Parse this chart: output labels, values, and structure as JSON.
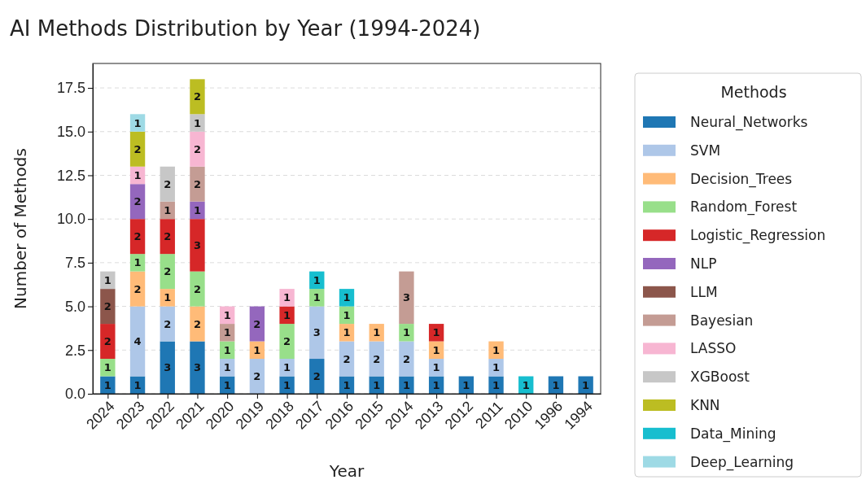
{
  "chart_data": {
    "type": "bar",
    "title": "AI Methods Distribution by Year (1994-2024)",
    "xlabel": "Year",
    "ylabel": "Number of Methods",
    "legend_title": "Methods",
    "categories": [
      "2024",
      "2023",
      "2022",
      "2021",
      "2020",
      "2019",
      "2018",
      "2017",
      "2016",
      "2015",
      "2014",
      "2013",
      "2012",
      "2011",
      "2010",
      "1996",
      "1994"
    ],
    "stacked": true,
    "data_labels": true,
    "grid": "y",
    "legend": "right",
    "ylim": [
      0,
      18.9
    ],
    "yticks": [
      {
        "value": 0,
        "label": "0.0"
      },
      {
        "value": 2.5,
        "label": "2.5"
      },
      {
        "value": 5,
        "label": "5.0"
      },
      {
        "value": 7.5,
        "label": "7.5"
      },
      {
        "value": 10,
        "label": "10.0"
      },
      {
        "value": 12.5,
        "label": "12.5"
      },
      {
        "value": 15,
        "label": "15.0"
      },
      {
        "value": 17.5,
        "label": "17.5"
      }
    ],
    "series": [
      {
        "name": "Neural_Networks",
        "color": "#1f77b4",
        "values": [
          1,
          1,
          3,
          3,
          1,
          null,
          1,
          2,
          1,
          1,
          1,
          1,
          1,
          1,
          null,
          1,
          1
        ]
      },
      {
        "name": "SVM",
        "color": "#aec7e8",
        "values": [
          null,
          4,
          2,
          null,
          1,
          2,
          1,
          3,
          2,
          2,
          2,
          1,
          null,
          1,
          null,
          null,
          null
        ]
      },
      {
        "name": "Decision_Trees",
        "color": "#ffbb78",
        "values": [
          null,
          2,
          1,
          2,
          null,
          1,
          null,
          null,
          1,
          1,
          null,
          1,
          null,
          1,
          null,
          null,
          null
        ]
      },
      {
        "name": "Random_Forest",
        "color": "#98df8a",
        "values": [
          1,
          1,
          2,
          2,
          1,
          null,
          2,
          1,
          1,
          null,
          1,
          null,
          null,
          null,
          null,
          null,
          null
        ]
      },
      {
        "name": "Logistic_Regression",
        "color": "#d62728",
        "values": [
          2,
          2,
          2,
          3,
          null,
          null,
          1,
          null,
          null,
          null,
          null,
          1,
          null,
          null,
          null,
          null,
          null
        ]
      },
      {
        "name": "NLP",
        "color": "#9467bd",
        "values": [
          null,
          2,
          null,
          1,
          null,
          2,
          null,
          null,
          null,
          null,
          null,
          null,
          null,
          null,
          null,
          null,
          null
        ]
      },
      {
        "name": "LLM",
        "color": "#8c564b",
        "values": [
          2,
          null,
          null,
          null,
          null,
          null,
          null,
          null,
          null,
          null,
          null,
          null,
          null,
          null,
          null,
          null,
          null
        ]
      },
      {
        "name": "Bayesian",
        "color": "#c49c94",
        "values": [
          null,
          null,
          1,
          2,
          1,
          null,
          null,
          null,
          null,
          null,
          3,
          null,
          null,
          null,
          null,
          null,
          null
        ]
      },
      {
        "name": "LASSO",
        "color": "#f7b6d2",
        "values": [
          null,
          1,
          null,
          2,
          1,
          null,
          1,
          null,
          null,
          null,
          null,
          null,
          null,
          null,
          null,
          null,
          null
        ]
      },
      {
        "name": "XGBoost",
        "color": "#c7c7c7",
        "values": [
          1,
          null,
          2,
          1,
          null,
          null,
          null,
          null,
          null,
          null,
          null,
          null,
          null,
          null,
          null,
          null,
          null
        ]
      },
      {
        "name": "KNN",
        "color": "#bcbd22",
        "values": [
          null,
          2,
          null,
          2,
          null,
          null,
          null,
          null,
          null,
          null,
          null,
          null,
          null,
          null,
          null,
          null,
          null
        ]
      },
      {
        "name": "Data_Mining",
        "color": "#17becf",
        "values": [
          null,
          null,
          null,
          null,
          null,
          null,
          null,
          1,
          1,
          null,
          null,
          null,
          null,
          null,
          1,
          null,
          null
        ]
      },
      {
        "name": "Deep_Learning",
        "color": "#9edae5",
        "values": [
          null,
          1,
          null,
          null,
          null,
          null,
          null,
          null,
          null,
          null,
          null,
          null,
          null,
          null,
          null,
          null,
          null
        ]
      }
    ]
  }
}
